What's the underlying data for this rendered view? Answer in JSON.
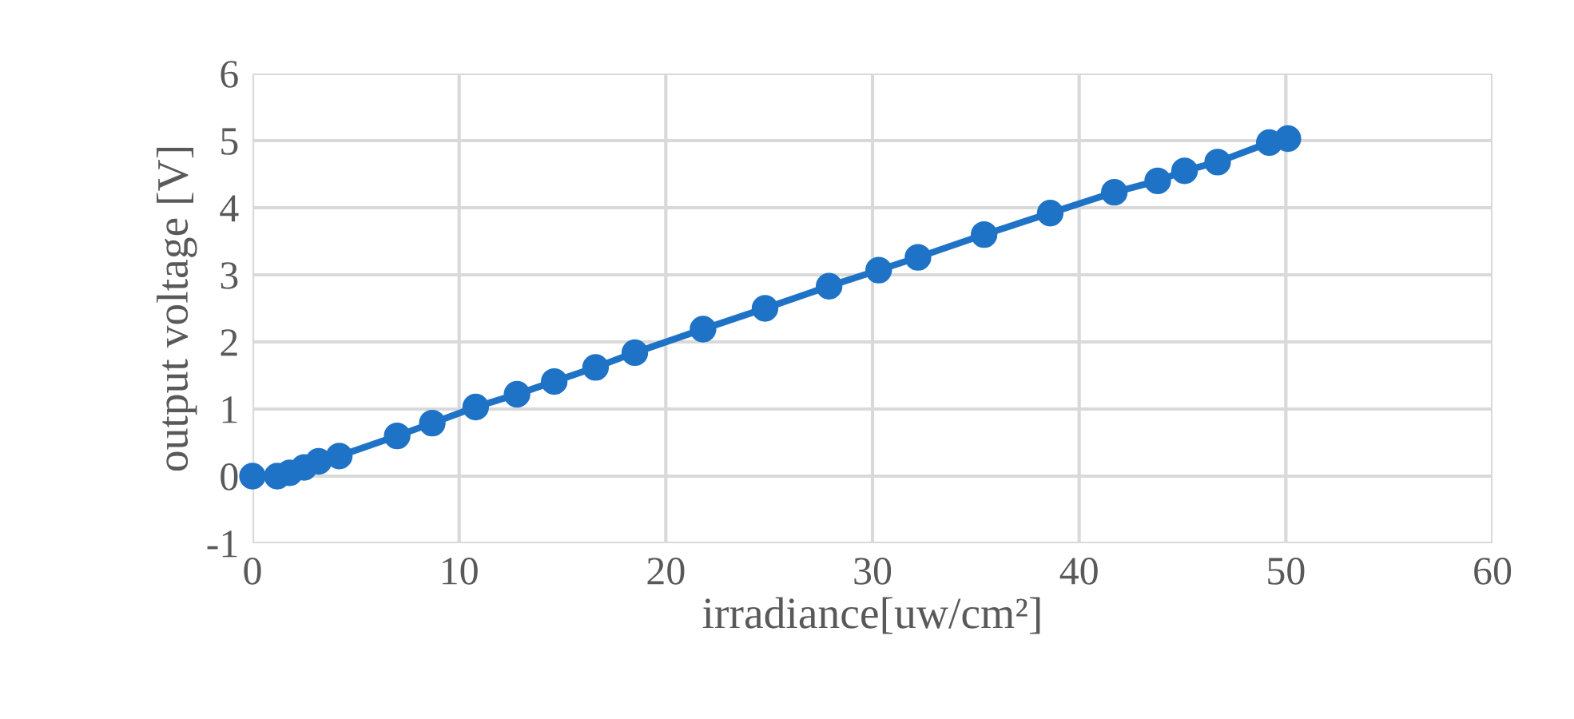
{
  "chart_data": {
    "type": "line",
    "xlabel": "irradiance[uw/cm²]",
    "ylabel": "output voltage [V]",
    "xlim": [
      0,
      60
    ],
    "ylim": [
      -1,
      6
    ],
    "xticks": [
      0,
      10,
      20,
      30,
      40,
      50,
      60
    ],
    "yticks": [
      -1,
      0,
      1,
      2,
      3,
      4,
      5,
      6
    ],
    "grid": true,
    "marker": "circle",
    "line_style": "solid",
    "series": [
      {
        "color": "#1f73c6",
        "x": [
          0,
          1.2,
          1.8,
          2.5,
          3.2,
          4.2,
          7.0,
          8.7,
          10.8,
          12.8,
          14.6,
          16.6,
          18.5,
          21.8,
          24.8,
          27.9,
          30.3,
          32.2,
          35.4,
          38.6,
          41.7,
          43.8,
          45.1,
          46.7,
          49.2,
          50.1
        ],
        "values": [
          0,
          0.0,
          0.05,
          0.13,
          0.22,
          0.3,
          0.6,
          0.79,
          1.03,
          1.22,
          1.41,
          1.62,
          1.84,
          2.19,
          2.5,
          2.83,
          3.07,
          3.26,
          3.6,
          3.92,
          4.23,
          4.4,
          4.55,
          4.68,
          4.97,
          5.03
        ]
      }
    ]
  }
}
